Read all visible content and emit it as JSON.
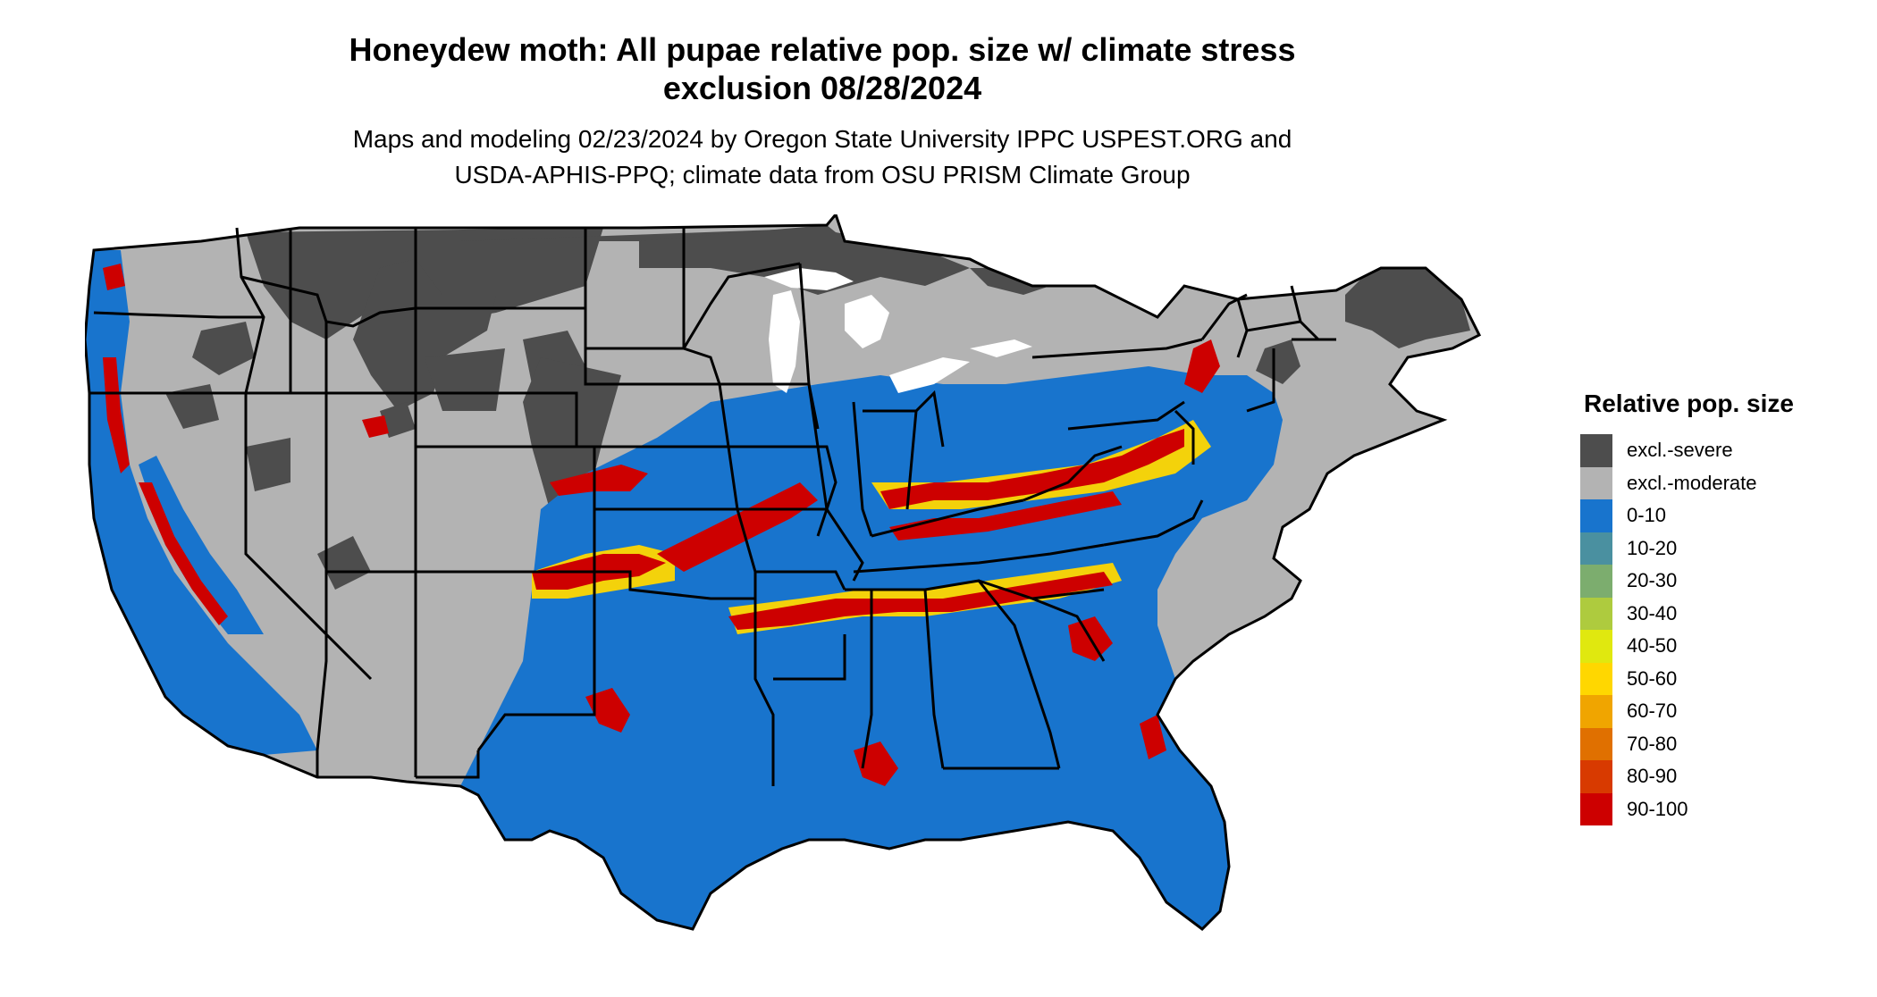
{
  "title": {
    "line1": "Honeydew moth: All pupae relative pop. size w/ climate stress",
    "line2": "exclusion 08/28/2024"
  },
  "subtitle": {
    "line1": "Maps and modeling 02/23/2024 by Oregon State University IPPC USPEST.ORG and",
    "line2": "USDA-APHIS-PPQ; climate data from OSU PRISM Climate Group"
  },
  "legend": {
    "title": "Relative pop. size",
    "items": [
      {
        "label": "excl.-severe",
        "color": "#4d4d4d"
      },
      {
        "label": "excl.-moderate",
        "color": "#b3b3b3"
      },
      {
        "label": "0-10",
        "color": "#1874cd"
      },
      {
        "label": "10-20",
        "color": "#4a90a0"
      },
      {
        "label": "20-30",
        "color": "#7cad6e"
      },
      {
        "label": "30-40",
        "color": "#aecb3e"
      },
      {
        "label": "40-50",
        "color": "#e0e80f"
      },
      {
        "label": "50-60",
        "color": "#ffd700"
      },
      {
        "label": "60-70",
        "color": "#f0a500"
      },
      {
        "label": "70-80",
        "color": "#e07000"
      },
      {
        "label": "80-90",
        "color": "#d83a00"
      },
      {
        "label": "90-100",
        "color": "#cd0000"
      }
    ]
  }
}
